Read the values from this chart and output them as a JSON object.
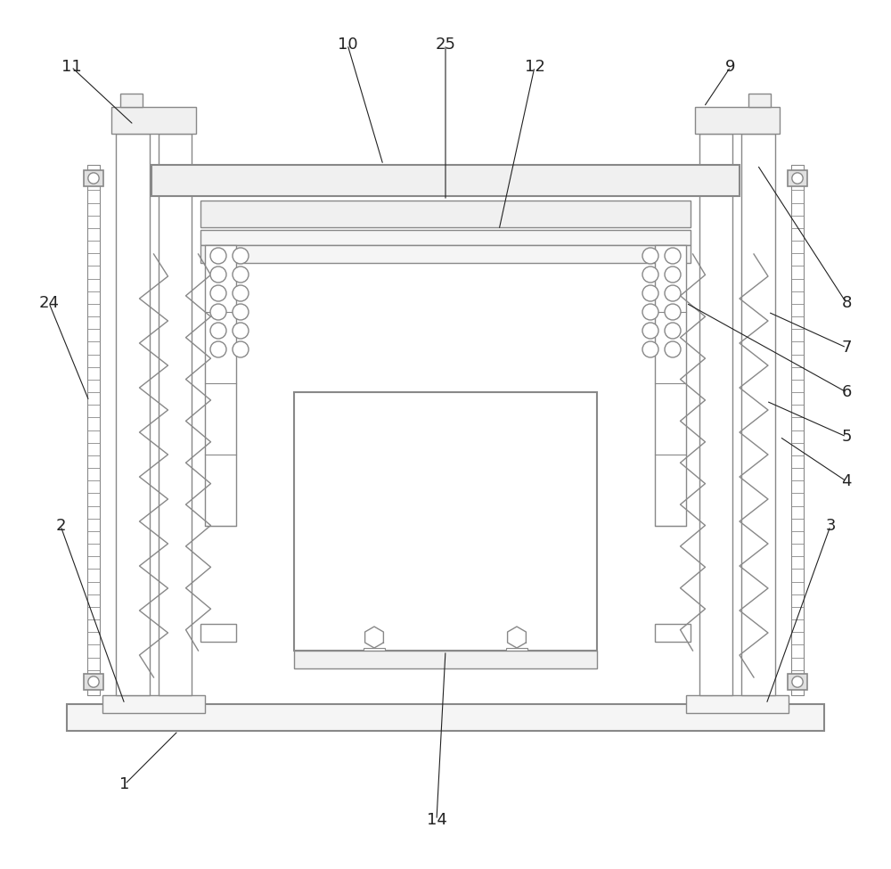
{
  "bg_color": "#ffffff",
  "line_color": "#888888",
  "lw": 1.0,
  "tlw": 1.5,
  "figsize": [
    10.0,
    9.75
  ],
  "dpi": 100,
  "label_fontsize": 13,
  "ann_color": "#222222"
}
